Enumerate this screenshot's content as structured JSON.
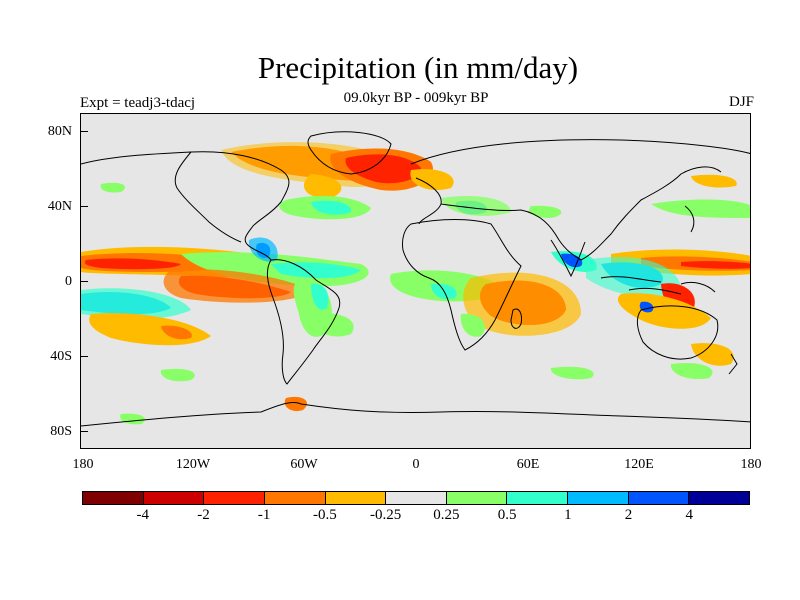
{
  "title": "Precipitation (in mm/day)",
  "subtitle": "09.0kyr BP - 009kyr BP",
  "experiment": "Expt = teadj3-tdacj",
  "season": "DJF",
  "lat_labels": [
    "80N",
    "40N",
    "0",
    "40S",
    "80S"
  ],
  "lon_labels": [
    "180",
    "120W",
    "60W",
    "0",
    "60E",
    "120E",
    "180"
  ],
  "colorbar": {
    "colors": [
      "#7f0000",
      "#cc0000",
      "#ff2200",
      "#ff7700",
      "#ffbb00",
      "#e6e6e6",
      "#88ff66",
      "#33ffcc",
      "#00bbff",
      "#0055ff",
      "#000099"
    ],
    "labels": [
      "-4",
      "-2",
      "-1",
      "-0.5",
      "-0.25",
      "0.25",
      "0.5",
      "1",
      "2",
      "4"
    ]
  },
  "palette": {
    "ocean_land_neutral": "#e6e6e6",
    "strong_dry": "#ff2200",
    "dry": "#ff7700",
    "weak_dry": "#ffbb00",
    "weak_wet": "#88ff66",
    "wet": "#33ffcc",
    "wetter": "#00bbff",
    "strong_wet": "#0055ff",
    "coast": "#000000"
  }
}
